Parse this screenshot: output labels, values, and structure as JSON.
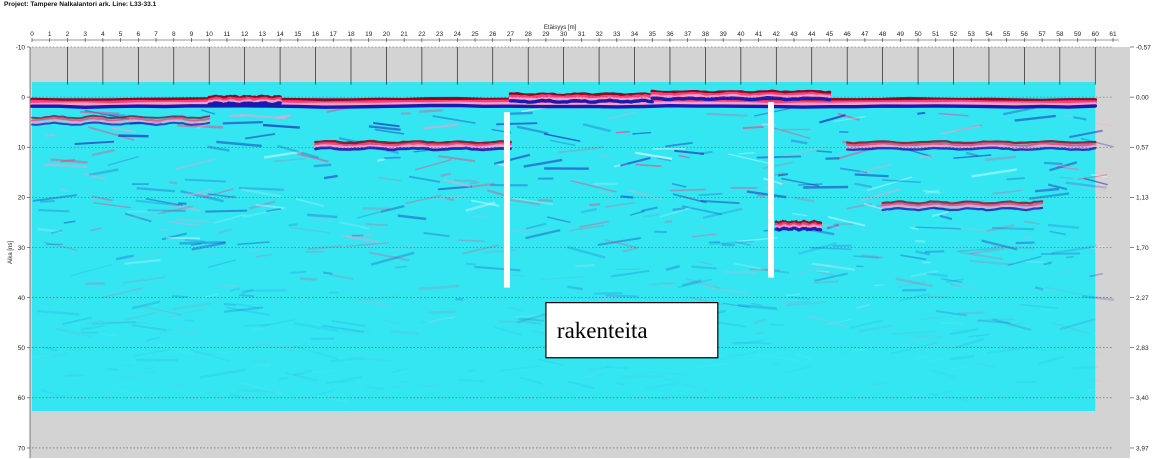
{
  "header": {
    "project_text": "Project: Tampere Nalkalantori ark.  Line: L33-33.1"
  },
  "chart_data": {
    "type": "heatmap",
    "title": "",
    "xlabel": "Etäisyys [m]",
    "ylabel": "Aika [ns]",
    "xlim": [
      0,
      61
    ],
    "ylim": [
      -10,
      72
    ],
    "x_ticks": [
      0,
      1,
      2,
      3,
      4,
      5,
      6,
      7,
      8,
      9,
      10,
      11,
      12,
      13,
      14,
      15,
      16,
      17,
      18,
      19,
      20,
      21,
      22,
      23,
      24,
      25,
      26,
      27,
      28,
      29,
      30,
      31,
      32,
      33,
      34,
      35,
      36,
      37,
      38,
      39,
      40,
      41,
      42,
      43,
      44,
      45,
      46,
      47,
      48,
      49,
      50,
      51,
      52,
      53,
      54,
      55,
      56,
      57,
      58,
      59,
      60,
      61
    ],
    "y_ticks": [
      -10,
      0,
      10,
      20,
      30,
      40,
      50,
      60,
      70
    ],
    "right_axis_ticks": [
      {
        "time": -10,
        "label": "-0,57"
      },
      {
        "time": 0,
        "label": "0,00"
      },
      {
        "time": 10,
        "label": "0,57"
      },
      {
        "time": 20,
        "label": "1,13"
      },
      {
        "time": 30,
        "label": "1,70"
      },
      {
        "time": 40,
        "label": "2,27"
      },
      {
        "time": 50,
        "label": "2,83"
      },
      {
        "time": 60,
        "label": "3,40"
      },
      {
        "time": 70,
        "label": "3,97"
      }
    ],
    "data_extent": {
      "x": [
        0,
        60
      ],
      "time": [
        -3,
        64
      ]
    },
    "annotations": [
      {
        "text": "rakenteita",
        "box_x": [
          29.0,
          38.7
        ],
        "box_time": [
          41,
          52
        ]
      }
    ],
    "markers": [
      {
        "type": "vertical-white-bar",
        "x": 26.8,
        "time": [
          3,
          38
        ]
      },
      {
        "type": "vertical-white-bar",
        "x": 41.7,
        "time": [
          1,
          36
        ]
      }
    ],
    "grid": true,
    "colors": {
      "background": "#33e6f2",
      "positive_reflection": "#8a0a20",
      "negative_reflection": "#1a1ab0",
      "mid_red": "#ff3c78",
      "light_pink": "#ff9ec8",
      "out_of_data": "#d3d3d3"
    },
    "reflectors": [
      {
        "x": [
          0,
          60
        ],
        "time": 0.5,
        "amp": 1.0,
        "note": "surface reflection"
      },
      {
        "x": [
          0,
          10
        ],
        "time": 4,
        "amp": 0.45
      },
      {
        "x": [
          10,
          14
        ],
        "time": 0,
        "amp": 1.0
      },
      {
        "x": [
          16,
          27
        ],
        "time": 9,
        "amp": 0.75
      },
      {
        "x": [
          27,
          35
        ],
        "time": -0.5,
        "amp": 1.0
      },
      {
        "x": [
          35,
          45
        ],
        "time": -1,
        "amp": 1.0
      },
      {
        "x": [
          42,
          44.5
        ],
        "time": 25,
        "amp": 0.9
      },
      {
        "x": [
          46,
          60
        ],
        "time": 9,
        "amp": 0.6
      },
      {
        "x": [
          48,
          57
        ],
        "time": 21,
        "amp": 0.55
      }
    ]
  }
}
